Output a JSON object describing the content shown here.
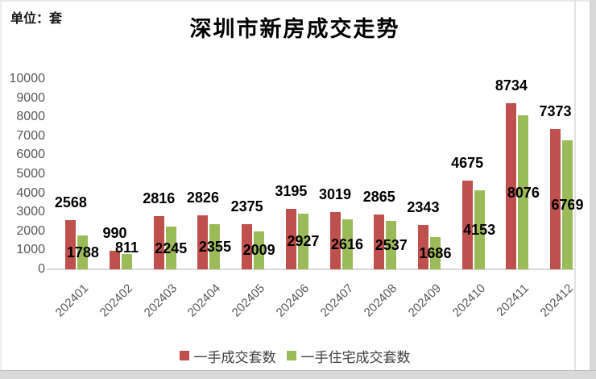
{
  "chart_data": {
    "type": "bar",
    "title": "深圳市新房成交走势",
    "unit_label": "单位：套",
    "categories": [
      "202401",
      "202402",
      "202403",
      "202404",
      "202405",
      "202406",
      "202407",
      "202408",
      "202409",
      "202410",
      "202411",
      "202412"
    ],
    "series": [
      {
        "name": "一手成交套数",
        "color": "#C0504D",
        "values": [
          2568,
          990,
          2816,
          2826,
          2375,
          3195,
          3019,
          2865,
          2343,
          4675,
          8734,
          7373
        ]
      },
      {
        "name": "一手住宅成交套数",
        "color": "#9BBB59",
        "values": [
          1788,
          811,
          2245,
          2355,
          2009,
          2927,
          2616,
          2537,
          1686,
          4153,
          8076,
          6769
        ]
      }
    ],
    "ylim": [
      0,
      10000
    ],
    "ytick_step": 1000,
    "grid": false,
    "legend_position": "bottom",
    "data_labels": true,
    "axis_label_color": "#595959",
    "data_label_color": "#000000"
  }
}
